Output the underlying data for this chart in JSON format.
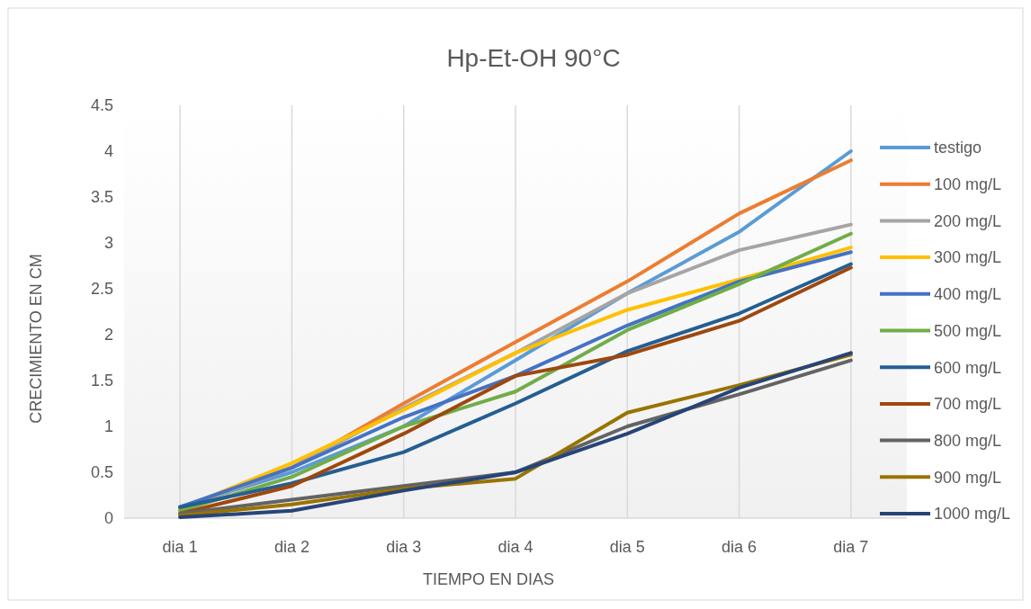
{
  "chart_data": {
    "type": "line",
    "title": "Hp-Et-OH  90°C",
    "xlabel": "TIEMPO EN DIAS",
    "ylabel": "CRECIMIENTO EN CM",
    "categories": [
      "dia 1",
      "dia 2",
      "dia 3",
      "dia 4",
      "dia 5",
      "dia 6",
      "dia 7"
    ],
    "ylim": [
      0,
      4.5
    ],
    "yticks": [
      0,
      0.5,
      1,
      1.5,
      2,
      2.5,
      3,
      3.5,
      4,
      4.5
    ],
    "grid": "x",
    "legend": "right",
    "marker": "none",
    "line_style": "solid",
    "series": [
      {
        "name": "testigo",
        "color": "#5b9bd5",
        "values": [
          0.12,
          0.5,
          1.0,
          1.72,
          2.45,
          3.12,
          4.0
        ]
      },
      {
        "name": "100 mg/L",
        "color": "#ed7d31",
        "values": [
          0.1,
          0.55,
          1.25,
          1.92,
          2.58,
          3.32,
          3.9
        ]
      },
      {
        "name": "200 mg/L",
        "color": "#a5a5a5",
        "values": [
          0.1,
          0.55,
          1.2,
          1.8,
          2.45,
          2.92,
          3.2
        ]
      },
      {
        "name": "300 mg/L",
        "color": "#ffc000",
        "values": [
          0.1,
          0.6,
          1.18,
          1.8,
          2.27,
          2.6,
          2.95
        ]
      },
      {
        "name": "400 mg/L",
        "color": "#4472c4",
        "values": [
          0.12,
          0.55,
          1.1,
          1.55,
          2.1,
          2.58,
          2.9
        ]
      },
      {
        "name": "500 mg/L",
        "color": "#70ad47",
        "values": [
          0.08,
          0.45,
          1.0,
          1.38,
          2.05,
          2.55,
          3.1
        ]
      },
      {
        "name": "600 mg/L",
        "color": "#255e91",
        "values": [
          0.12,
          0.38,
          0.72,
          1.25,
          1.82,
          2.23,
          2.77
        ]
      },
      {
        "name": "700 mg/L",
        "color": "#9e480e",
        "values": [
          0.05,
          0.35,
          0.92,
          1.55,
          1.78,
          2.15,
          2.73
        ]
      },
      {
        "name": "800 mg/L",
        "color": "#636363",
        "values": [
          0.05,
          0.2,
          0.35,
          0.5,
          1.0,
          1.35,
          1.72
        ]
      },
      {
        "name": "900 mg/L",
        "color": "#997300",
        "values": [
          0.03,
          0.15,
          0.32,
          0.43,
          1.15,
          1.45,
          1.78
        ]
      },
      {
        "name": "1000 mg/L",
        "color": "#264478",
        "values": [
          0.01,
          0.08,
          0.3,
          0.5,
          0.92,
          1.42,
          1.8
        ]
      }
    ]
  }
}
